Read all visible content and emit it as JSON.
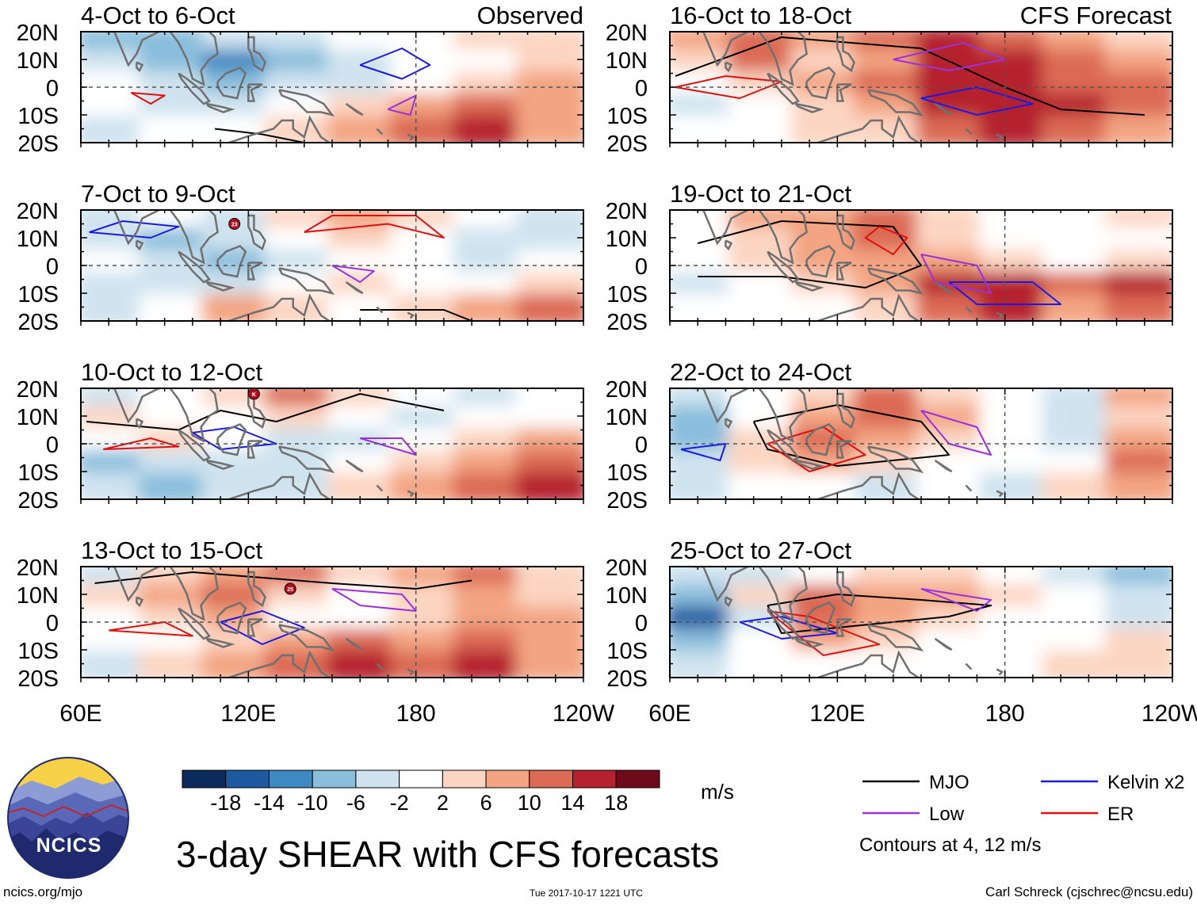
{
  "chart_data": {
    "type": "heatmap",
    "title": "3-day SHEAR with CFS forecasts",
    "units": "m/s",
    "observed_label": "Observed",
    "forecast_label": "CFS Forecast",
    "lat_ticks": [
      "20N",
      "10N",
      "0",
      "10S",
      "20S"
    ],
    "lon_ticks": [
      "60E",
      "120E",
      "180",
      "120W"
    ],
    "lon_values_deg": [
      60,
      120,
      180,
      240
    ],
    "lon_range_deg": [
      60,
      240
    ],
    "lat_range_deg": [
      -20,
      20
    ],
    "colorbar": {
      "levels": [
        "-18",
        "-14",
        "-10",
        "-6",
        "-2",
        "2",
        "6",
        "10",
        "14",
        "18"
      ],
      "colors": [
        "#0d2a5c",
        "#1d5aa0",
        "#3e89c2",
        "#89bedc",
        "#cfe3ef",
        "#ffffff",
        "#fcd5c2",
        "#f3a482",
        "#db6b55",
        "#b5212e",
        "#6e0a1a"
      ]
    },
    "panels": [
      {
        "label": "4-Oct to 6-Oct",
        "group": "observed",
        "shading": [
          [
            -6,
            -6,
            -2,
            -2,
            2,
            2,
            6,
            6
          ],
          [
            -2,
            -6,
            -10,
            -6,
            -2,
            2,
            2,
            6
          ],
          [
            2,
            -2,
            -6,
            -2,
            -2,
            2,
            6,
            10
          ],
          [
            2,
            -2,
            -2,
            2,
            6,
            10,
            14,
            10
          ],
          [
            -2,
            2,
            2,
            6,
            10,
            14,
            18,
            10
          ]
        ]
      },
      {
        "label": "7-Oct to 9-Oct",
        "group": "observed",
        "shading": [
          [
            -2,
            2,
            -2,
            6,
            10,
            6,
            2,
            -2
          ],
          [
            -2,
            -6,
            -2,
            2,
            6,
            2,
            -2,
            -2
          ],
          [
            2,
            -2,
            -6,
            -2,
            2,
            2,
            -2,
            2
          ],
          [
            -2,
            -2,
            -2,
            2,
            6,
            2,
            2,
            6
          ],
          [
            -2,
            2,
            10,
            6,
            2,
            6,
            10,
            14
          ]
        ]
      },
      {
        "label": "10-Oct to 12-Oct",
        "group": "observed",
        "shading": [
          [
            -2,
            2,
            6,
            14,
            6,
            2,
            -2,
            2
          ],
          [
            6,
            2,
            2,
            6,
            2,
            -2,
            2,
            2
          ],
          [
            2,
            6,
            2,
            -2,
            -2,
            2,
            6,
            10
          ],
          [
            -6,
            -2,
            -2,
            -2,
            2,
            6,
            10,
            14
          ],
          [
            -2,
            -6,
            -2,
            -2,
            6,
            10,
            14,
            18
          ]
        ]
      },
      {
        "label": "13-Oct to 15-Oct",
        "group": "observed",
        "shading": [
          [
            -2,
            6,
            10,
            14,
            6,
            10,
            14,
            6
          ],
          [
            6,
            10,
            14,
            6,
            2,
            6,
            10,
            6
          ],
          [
            2,
            6,
            10,
            2,
            2,
            6,
            10,
            10
          ],
          [
            2,
            2,
            6,
            10,
            14,
            10,
            14,
            10
          ],
          [
            -2,
            6,
            10,
            14,
            18,
            14,
            18,
            10
          ]
        ]
      },
      {
        "label": "16-Oct to 18-Oct",
        "group": "forecast",
        "shading": [
          [
            10,
            14,
            10,
            14,
            18,
            14,
            10,
            6
          ],
          [
            6,
            14,
            6,
            10,
            18,
            18,
            14,
            10
          ],
          [
            2,
            6,
            10,
            14,
            18,
            18,
            14,
            14
          ],
          [
            -2,
            2,
            6,
            10,
            18,
            18,
            18,
            14
          ],
          [
            2,
            2,
            6,
            6,
            14,
            18,
            14,
            10
          ]
        ]
      },
      {
        "label": "19-Oct to 21-Oct",
        "group": "forecast",
        "shading": [
          [
            2,
            10,
            10,
            14,
            6,
            2,
            2,
            6
          ],
          [
            2,
            6,
            10,
            14,
            6,
            2,
            2,
            2
          ],
          [
            2,
            6,
            10,
            10,
            10,
            6,
            2,
            6
          ],
          [
            -2,
            2,
            6,
            10,
            18,
            18,
            14,
            18
          ],
          [
            2,
            2,
            2,
            6,
            14,
            18,
            10,
            14
          ]
        ]
      },
      {
        "label": "22-Oct to 24-Oct",
        "group": "forecast",
        "shading": [
          [
            -2,
            2,
            6,
            14,
            6,
            2,
            -2,
            10
          ],
          [
            -6,
            2,
            10,
            14,
            10,
            2,
            -2,
            6
          ],
          [
            -6,
            6,
            14,
            10,
            6,
            2,
            -2,
            10
          ],
          [
            -2,
            6,
            10,
            6,
            2,
            2,
            2,
            14
          ],
          [
            -2,
            2,
            2,
            -2,
            2,
            -2,
            6,
            10
          ]
        ]
      },
      {
        "label": "25-Oct to 27-Oct",
        "group": "forecast",
        "shading": [
          [
            -2,
            -2,
            2,
            6,
            6,
            2,
            -2,
            -6
          ],
          [
            -6,
            6,
            14,
            10,
            10,
            6,
            2,
            -2
          ],
          [
            -14,
            -2,
            14,
            10,
            6,
            2,
            2,
            -2
          ],
          [
            -6,
            2,
            10,
            6,
            2,
            2,
            2,
            6
          ],
          [
            -2,
            2,
            2,
            2,
            2,
            2,
            6,
            6
          ]
        ]
      }
    ]
  },
  "legend": {
    "items": [
      {
        "label": "MJO",
        "color": "#000000"
      },
      {
        "label": "Kelvin x2",
        "color": "#1a1ae6"
      },
      {
        "label": "Low",
        "color": "#9b30e0"
      },
      {
        "label": "ER",
        "color": "#e01010"
      }
    ],
    "contours_note": "Contours at 4, 12 m/s"
  },
  "logo": {
    "text": "NCICS"
  },
  "footer": {
    "url": "ncics.org/mjo",
    "timestamp": "Tue 2017-10-17 1221 UTC",
    "credit": "Carl Schreck (cjschrec@ncsu.edu)"
  },
  "storm_markers": [
    {
      "panel": 1,
      "label": "23"
    },
    {
      "panel": 2,
      "label": "K"
    },
    {
      "panel": 3,
      "label": "25"
    }
  ]
}
